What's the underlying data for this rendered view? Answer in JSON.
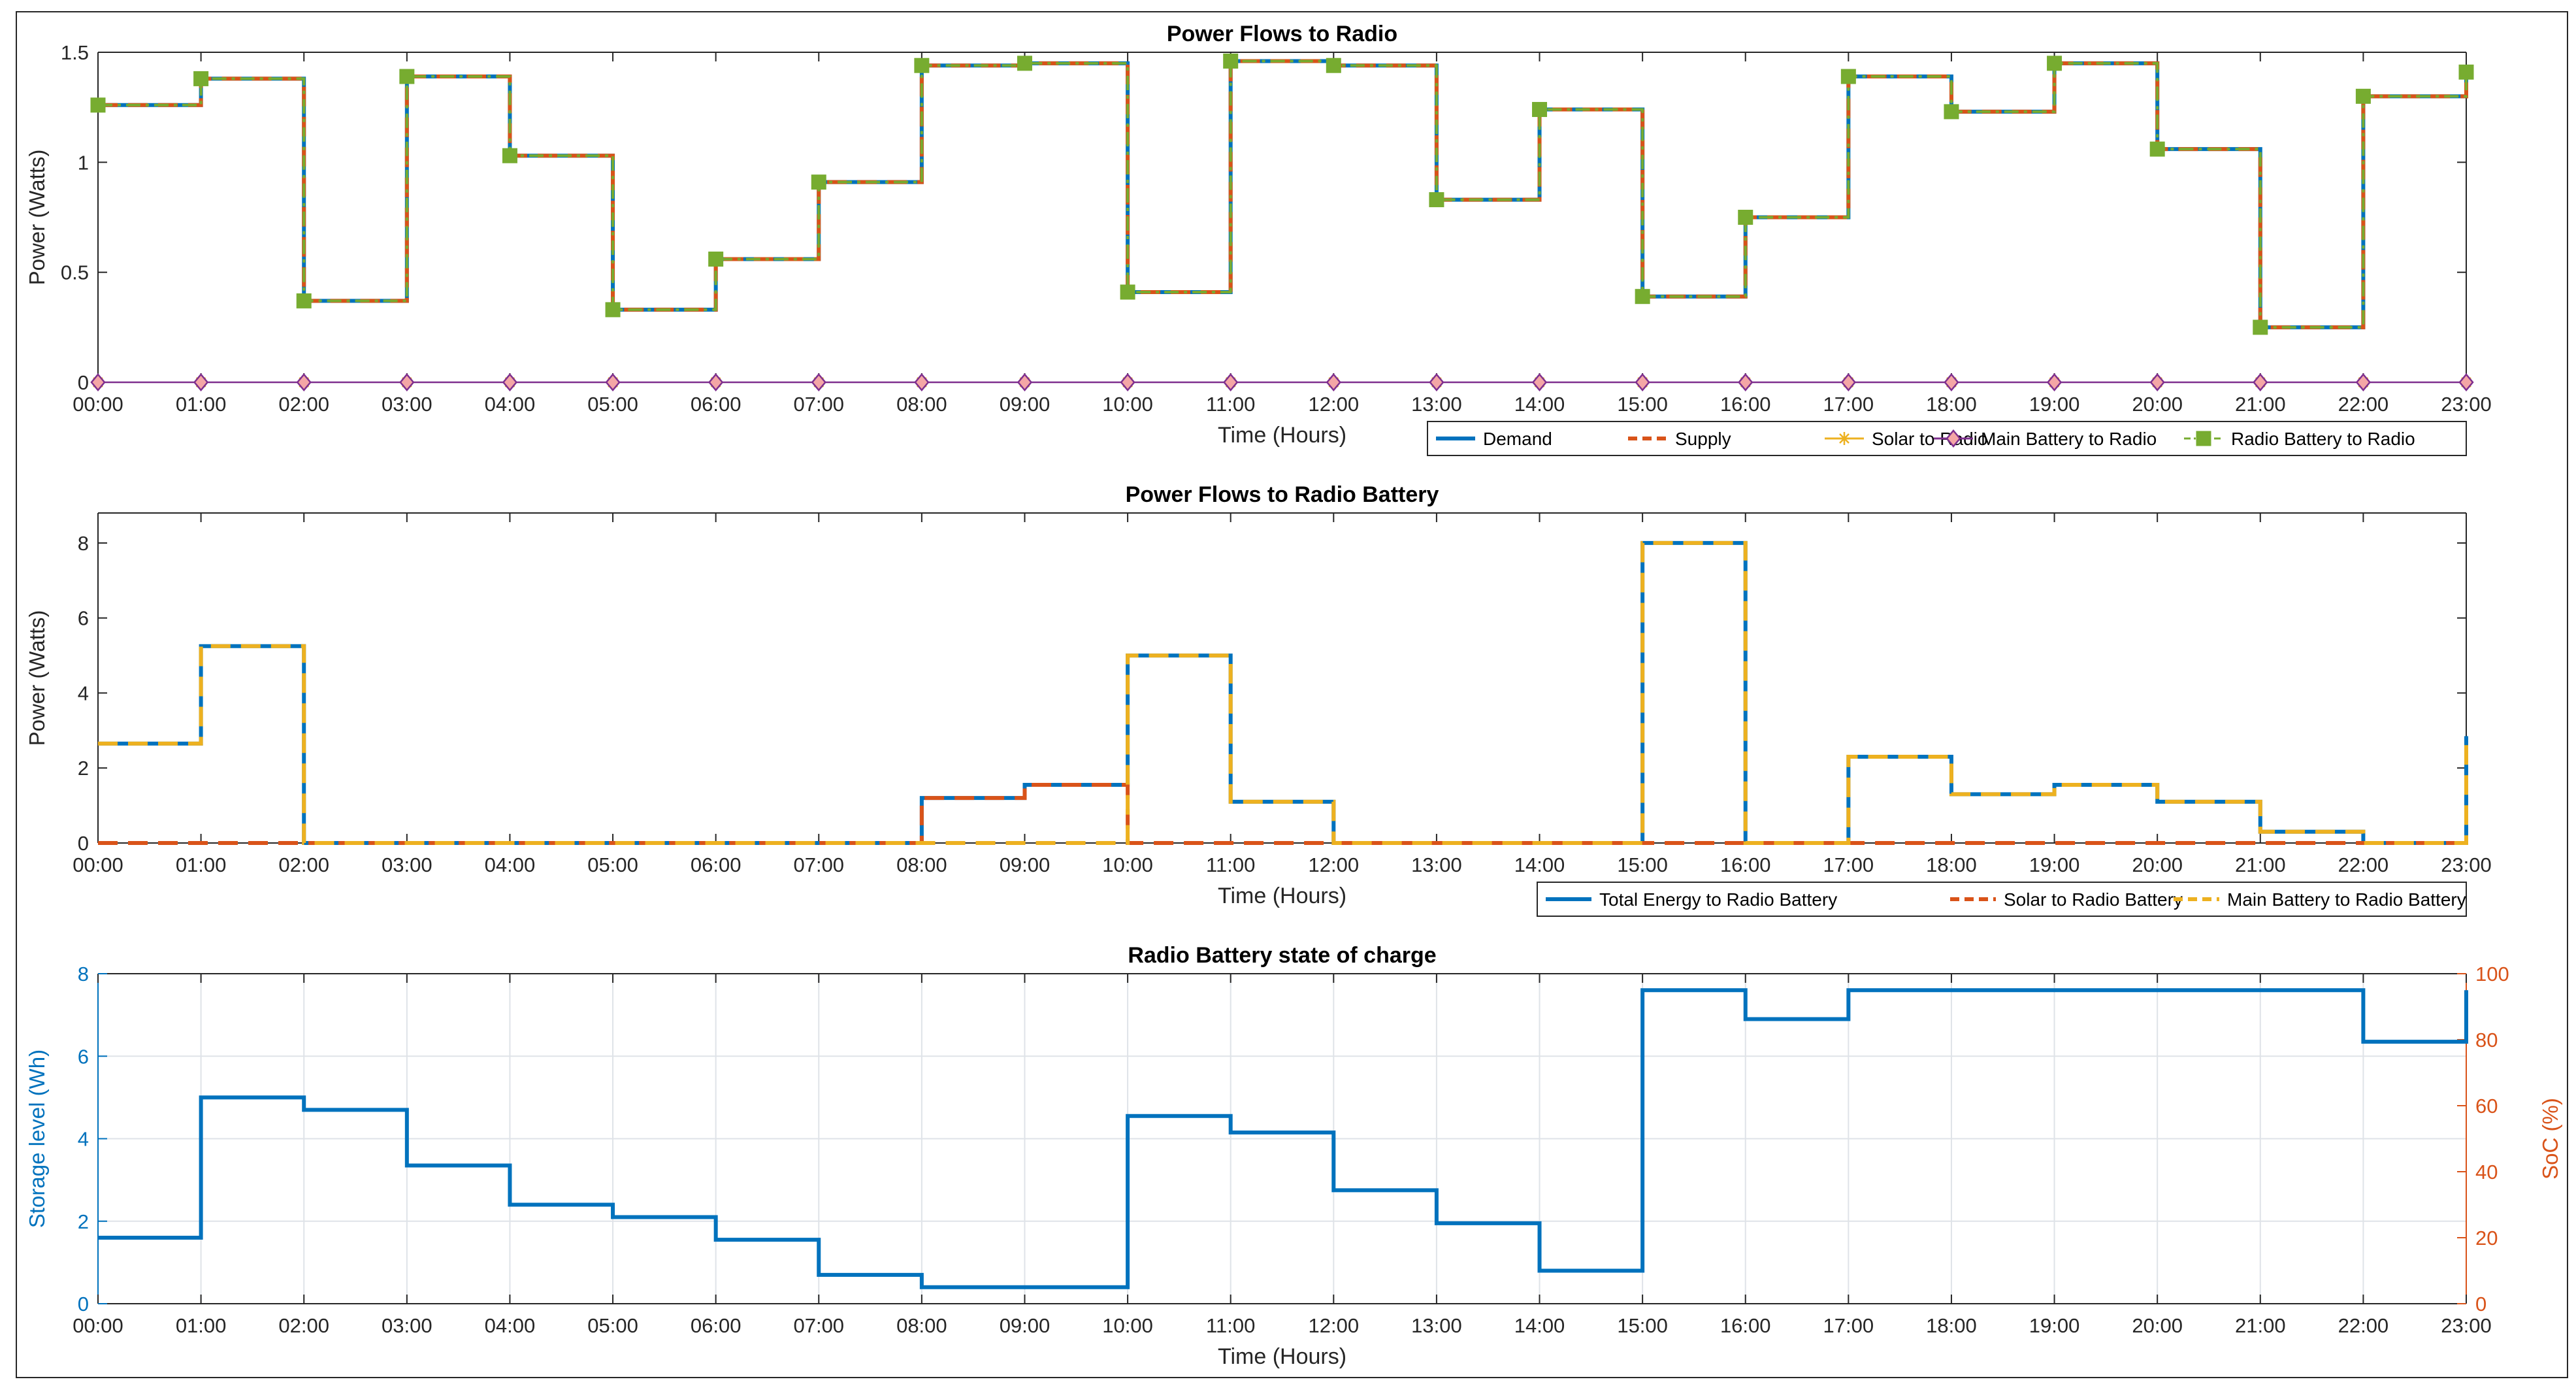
{
  "colors": {
    "blue": "#0072BD",
    "orange": "#D95319",
    "yellow": "#EDB120",
    "purple": "#7E2F8E",
    "green": "#77AC30",
    "axis": "#262626",
    "grid": "#dfe3e8"
  },
  "chart_data": [
    {
      "type": "line",
      "step": true,
      "title": "Power Flows to Radio",
      "xlabel": "Time (Hours)",
      "ylabel": "Power (Watts)",
      "xlim": [
        0,
        23
      ],
      "ylim": [
        0,
        1.5
      ],
      "yticks": [
        0,
        0.5,
        1,
        1.5
      ],
      "ytick_labels": [
        "0",
        "0.5",
        "1",
        "1.5"
      ],
      "xtick_labels": [
        "00:00",
        "01:00",
        "02:00",
        "03:00",
        "04:00",
        "05:00",
        "06:00",
        "07:00",
        "08:00",
        "09:00",
        "10:00",
        "11:00",
        "12:00",
        "13:00",
        "14:00",
        "15:00",
        "16:00",
        "17:00",
        "18:00",
        "19:00",
        "20:00",
        "21:00",
        "22:00",
        "23:00"
      ],
      "grid": false,
      "legend_position": "bottom-right-outside",
      "series": [
        {
          "name": "Demand",
          "color": "blue",
          "style": "solid",
          "marker": "none",
          "values": [
            1.26,
            1.38,
            0.37,
            1.39,
            1.03,
            0.33,
            0.56,
            0.91,
            1.44,
            1.45,
            0.41,
            1.46,
            1.44,
            0.83,
            1.24,
            0.39,
            0.75,
            1.39,
            1.23,
            1.45,
            1.06,
            0.25,
            1.3,
            1.41
          ]
        },
        {
          "name": "Supply",
          "color": "orange",
          "style": "dashed",
          "marker": "none",
          "values": [
            1.26,
            1.38,
            0.37,
            1.39,
            1.03,
            0.33,
            0.56,
            0.91,
            1.44,
            1.45,
            0.41,
            1.46,
            1.44,
            0.83,
            1.24,
            0.39,
            0.75,
            1.39,
            1.23,
            1.45,
            1.06,
            0.25,
            1.3,
            1.41
          ]
        },
        {
          "name": "Solar to Radio",
          "color": "yellow",
          "style": "solid",
          "marker": "star",
          "values": [
            0,
            0,
            0,
            0,
            0,
            0,
            0,
            0,
            0,
            0,
            0,
            0,
            0,
            0,
            0,
            0,
            0,
            0,
            0,
            0,
            0,
            0,
            0,
            0
          ]
        },
        {
          "name": "Main Battery to Radio",
          "color": "purple",
          "style": "solid",
          "marker": "diamond",
          "values": [
            0,
            0,
            0,
            0,
            0,
            0,
            0,
            0,
            0,
            0,
            0,
            0,
            0,
            0,
            0,
            0,
            0,
            0,
            0,
            0,
            0,
            0,
            0,
            0
          ]
        },
        {
          "name": "Radio Battery to Radio",
          "color": "green",
          "style": "dashdot",
          "marker": "square",
          "values": [
            1.26,
            1.38,
            0.37,
            1.39,
            1.03,
            0.33,
            0.56,
            0.91,
            1.44,
            1.45,
            0.41,
            1.46,
            1.44,
            0.83,
            1.24,
            0.39,
            0.75,
            1.39,
            1.23,
            1.45,
            1.06,
            0.25,
            1.3,
            1.41
          ]
        }
      ]
    },
    {
      "type": "line",
      "step": true,
      "title": "Power Flows to Radio Battery",
      "xlabel": "Time (Hours)",
      "ylabel": "Power (Watts)",
      "xlim": [
        0,
        23
      ],
      "ylim": [
        0,
        8.8
      ],
      "yticks": [
        0,
        2,
        4,
        6,
        8
      ],
      "ytick_labels": [
        "0",
        "2",
        "4",
        "6",
        "8"
      ],
      "xtick_labels": [
        "00:00",
        "01:00",
        "02:00",
        "03:00",
        "04:00",
        "05:00",
        "06:00",
        "07:00",
        "08:00",
        "09:00",
        "10:00",
        "11:00",
        "12:00",
        "13:00",
        "14:00",
        "15:00",
        "16:00",
        "17:00",
        "18:00",
        "19:00",
        "20:00",
        "21:00",
        "22:00",
        "23:00"
      ],
      "grid": false,
      "legend_position": "bottom-right-outside",
      "series": [
        {
          "name": "Total Energy to Radio Battery",
          "color": "blue",
          "style": "solid",
          "marker": "none",
          "values": [
            2.65,
            5.25,
            0,
            0,
            0,
            0,
            0,
            0,
            1.2,
            1.55,
            5.0,
            1.1,
            0,
            0,
            0,
            8.0,
            0,
            2.3,
            1.3,
            1.55,
            1.1,
            0.3,
            0,
            2.85
          ]
        },
        {
          "name": "Solar to Radio Battery",
          "color": "orange",
          "style": "dashed",
          "marker": "none",
          "values": [
            0,
            0,
            0,
            0,
            0,
            0,
            0,
            0,
            1.2,
            1.55,
            0,
            0,
            0,
            0,
            0,
            0,
            0,
            0,
            0,
            0,
            0,
            0,
            0,
            0
          ]
        },
        {
          "name": "Main Battery to Radio Battery",
          "color": "yellow",
          "style": "dashed",
          "marker": "none",
          "values": [
            2.65,
            5.25,
            0,
            0,
            0,
            0,
            0,
            0,
            0,
            0,
            5.0,
            1.1,
            0,
            0,
            0,
            8.0,
            0,
            2.3,
            1.3,
            1.55,
            1.1,
            0.3,
            0,
            2.85
          ]
        }
      ]
    },
    {
      "type": "line",
      "step": true,
      "title": "Radio Battery state of charge",
      "xlabel": "Time (Hours)",
      "ylabel": "Storage level (Wh)",
      "y2label": "SoC (%)",
      "xlim": [
        0,
        23
      ],
      "ylim": [
        0,
        8
      ],
      "y2lim": [
        0,
        100
      ],
      "yticks": [
        0,
        2,
        4,
        6,
        8
      ],
      "ytick_labels": [
        "0",
        "2",
        "4",
        "6",
        "8"
      ],
      "y2ticks": [
        0,
        20,
        40,
        60,
        80,
        100
      ],
      "y2tick_labels": [
        "0",
        "20",
        "40",
        "60",
        "80",
        "100"
      ],
      "xtick_labels": [
        "00:00",
        "01:00",
        "02:00",
        "03:00",
        "04:00",
        "05:00",
        "06:00",
        "07:00",
        "08:00",
        "09:00",
        "10:00",
        "11:00",
        "12:00",
        "13:00",
        "14:00",
        "15:00",
        "16:00",
        "17:00",
        "18:00",
        "19:00",
        "20:00",
        "21:00",
        "22:00",
        "23:00"
      ],
      "grid": true,
      "series": [
        {
          "name": "Storage level",
          "color": "blue",
          "style": "solid",
          "marker": "none",
          "values": [
            1.6,
            5.0,
            4.7,
            3.35,
            2.4,
            2.1,
            1.55,
            0.7,
            0.4,
            0.4,
            4.55,
            4.15,
            2.75,
            1.95,
            0.8,
            7.6,
            6.9,
            7.6,
            7.6,
            7.6,
            7.6,
            7.6,
            6.35,
            7.6
          ]
        }
      ]
    }
  ]
}
